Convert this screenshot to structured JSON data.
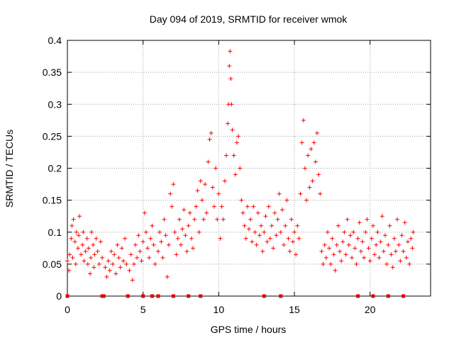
{
  "chart_data": {
    "type": "scatter",
    "title": "Day 094 of 2019, SRMTID for receiver wmok",
    "xlabel": "GPS time / hours",
    "ylabel": "SRMTID / TECUs",
    "xlim": [
      0,
      24
    ],
    "ylim": [
      0,
      0.4
    ],
    "grid": true,
    "marker": "+",
    "color": "#ff0000",
    "x_ticks": [
      {
        "value": 0,
        "label": "0"
      },
      {
        "value": 5,
        "label": "5"
      },
      {
        "value": 10,
        "label": "10"
      },
      {
        "value": 15,
        "label": "15"
      },
      {
        "value": 20,
        "label": "20"
      }
    ],
    "y_ticks": [
      {
        "value": 0,
        "label": "0"
      },
      {
        "value": 0.05,
        "label": "0.05"
      },
      {
        "value": 0.1,
        "label": "0.1"
      },
      {
        "value": 0.15,
        "label": "0.15"
      },
      {
        "value": 0.2,
        "label": "0.2"
      },
      {
        "value": 0.25,
        "label": "0.25"
      },
      {
        "value": 0.3,
        "label": "0.3"
      },
      {
        "value": 0.35,
        "label": "0.35"
      },
      {
        "value": 0.4,
        "label": "0.4"
      }
    ],
    "points": [
      [
        0.0,
        0.055
      ],
      [
        0.1,
        0.04
      ],
      [
        0.15,
        0.065
      ],
      [
        0.25,
        0.09
      ],
      [
        0.3,
        0.11
      ],
      [
        0.35,
        0.06
      ],
      [
        0.4,
        0.12
      ],
      [
        0.5,
        0.085
      ],
      [
        0.55,
        0.05
      ],
      [
        0.6,
        0.1
      ],
      [
        0.7,
        0.075
      ],
      [
        0.75,
        0.095
      ],
      [
        0.8,
        0.125
      ],
      [
        0.9,
        0.065
      ],
      [
        1.0,
        0.08
      ],
      [
        1.05,
        0.1
      ],
      [
        1.1,
        0.055
      ],
      [
        1.2,
        0.07
      ],
      [
        1.3,
        0.09
      ],
      [
        1.35,
        0.05
      ],
      [
        1.4,
        0.075
      ],
      [
        1.5,
        0.035
      ],
      [
        1.55,
        0.06
      ],
      [
        1.6,
        0.1
      ],
      [
        1.7,
        0.08
      ],
      [
        1.75,
        0.045
      ],
      [
        1.8,
        0.065
      ],
      [
        1.9,
        0.09
      ],
      [
        2.0,
        0.07
      ],
      [
        2.1,
        0.05
      ],
      [
        2.2,
        0.085
      ],
      [
        2.3,
        0.06
      ],
      [
        2.5,
        0.045
      ],
      [
        2.6,
        0.03
      ],
      [
        2.7,
        0.055
      ],
      [
        2.8,
        0.04
      ],
      [
        2.9,
        0.07
      ],
      [
        3.0,
        0.05
      ],
      [
        3.1,
        0.065
      ],
      [
        3.2,
        0.035
      ],
      [
        3.3,
        0.08
      ],
      [
        3.4,
        0.06
      ],
      [
        3.5,
        0.045
      ],
      [
        3.6,
        0.075
      ],
      [
        3.7,
        0.055
      ],
      [
        3.8,
        0.09
      ],
      [
        3.9,
        0.05
      ],
      [
        4.1,
        0.04
      ],
      [
        4.2,
        0.065
      ],
      [
        4.3,
        0.025
      ],
      [
        4.4,
        0.05
      ],
      [
        4.5,
        0.08
      ],
      [
        4.6,
        0.06
      ],
      [
        4.7,
        0.095
      ],
      [
        4.8,
        0.07
      ],
      [
        4.9,
        0.055
      ],
      [
        5.0,
        0.085
      ],
      [
        5.1,
        0.13
      ],
      [
        5.2,
        0.1
      ],
      [
        5.3,
        0.075
      ],
      [
        5.4,
        0.06
      ],
      [
        5.5,
        0.09
      ],
      [
        5.6,
        0.11
      ],
      [
        5.7,
        0.08
      ],
      [
        5.8,
        0.05
      ],
      [
        6.0,
        0.07
      ],
      [
        6.1,
        0.1
      ],
      [
        6.2,
        0.085
      ],
      [
        6.3,
        0.06
      ],
      [
        6.4,
        0.12
      ],
      [
        6.5,
        0.095
      ],
      [
        6.6,
        0.03
      ],
      [
        6.7,
        0.08
      ],
      [
        6.8,
        0.16
      ],
      [
        6.9,
        0.14
      ],
      [
        7.0,
        0.175
      ],
      [
        7.1,
        0.1
      ],
      [
        7.2,
        0.065
      ],
      [
        7.3,
        0.09
      ],
      [
        7.4,
        0.12
      ],
      [
        7.5,
        0.08
      ],
      [
        7.6,
        0.105
      ],
      [
        7.7,
        0.135
      ],
      [
        7.8,
        0.095
      ],
      [
        7.9,
        0.07
      ],
      [
        8.0,
        0.11
      ],
      [
        8.1,
        0.13
      ],
      [
        8.2,
        0.09
      ],
      [
        8.3,
        0.075
      ],
      [
        8.4,
        0.12
      ],
      [
        8.5,
        0.14
      ],
      [
        8.6,
        0.165
      ],
      [
        8.7,
        0.1
      ],
      [
        8.8,
        0.18
      ],
      [
        8.9,
        0.15
      ],
      [
        9.0,
        0.12
      ],
      [
        9.1,
        0.175
      ],
      [
        9.2,
        0.13
      ],
      [
        9.3,
        0.21
      ],
      [
        9.4,
        0.245
      ],
      [
        9.5,
        0.255
      ],
      [
        9.6,
        0.17
      ],
      [
        9.7,
        0.14
      ],
      [
        9.8,
        0.2
      ],
      [
        9.9,
        0.12
      ],
      [
        10.0,
        0.16
      ],
      [
        10.1,
        0.09
      ],
      [
        10.2,
        0.14
      ],
      [
        10.3,
        0.12
      ],
      [
        10.4,
        0.18
      ],
      [
        10.5,
        0.22
      ],
      [
        10.6,
        0.27
      ],
      [
        10.65,
        0.3
      ],
      [
        10.7,
        0.36
      ],
      [
        10.75,
        0.383
      ],
      [
        10.8,
        0.34
      ],
      [
        10.85,
        0.3
      ],
      [
        10.9,
        0.26
      ],
      [
        11.0,
        0.22
      ],
      [
        11.1,
        0.19
      ],
      [
        11.2,
        0.24
      ],
      [
        11.3,
        0.25
      ],
      [
        11.4,
        0.2
      ],
      [
        11.5,
        0.15
      ],
      [
        11.6,
        0.13
      ],
      [
        11.7,
        0.11
      ],
      [
        11.8,
        0.09
      ],
      [
        11.9,
        0.14
      ],
      [
        12.0,
        0.105
      ],
      [
        12.1,
        0.12
      ],
      [
        12.2,
        0.085
      ],
      [
        12.3,
        0.14
      ],
      [
        12.4,
        0.1
      ],
      [
        12.5,
        0.08
      ],
      [
        12.6,
        0.13
      ],
      [
        12.7,
        0.095
      ],
      [
        12.8,
        0.11
      ],
      [
        12.9,
        0.07
      ],
      [
        13.0,
        0.1
      ],
      [
        13.1,
        0.125
      ],
      [
        13.2,
        0.085
      ],
      [
        13.3,
        0.14
      ],
      [
        13.4,
        0.09
      ],
      [
        13.5,
        0.11
      ],
      [
        13.6,
        0.075
      ],
      [
        13.7,
        0.13
      ],
      [
        13.8,
        0.095
      ],
      [
        13.9,
        0.12
      ],
      [
        14.0,
        0.16
      ],
      [
        14.1,
        0.1
      ],
      [
        14.2,
        0.135
      ],
      [
        14.3,
        0.08
      ],
      [
        14.4,
        0.11
      ],
      [
        14.5,
        0.15
      ],
      [
        14.6,
        0.09
      ],
      [
        14.7,
        0.07
      ],
      [
        14.8,
        0.12
      ],
      [
        14.9,
        0.085
      ],
      [
        15.0,
        0.1
      ],
      [
        15.1,
        0.065
      ],
      [
        15.2,
        0.11
      ],
      [
        15.3,
        0.09
      ],
      [
        15.4,
        0.16
      ],
      [
        15.5,
        0.24
      ],
      [
        15.6,
        0.275
      ],
      [
        15.7,
        0.2
      ],
      [
        15.8,
        0.15
      ],
      [
        15.9,
        0.22
      ],
      [
        16.0,
        0.17
      ],
      [
        16.1,
        0.23
      ],
      [
        16.2,
        0.18
      ],
      [
        16.3,
        0.24
      ],
      [
        16.4,
        0.21
      ],
      [
        16.5,
        0.255
      ],
      [
        16.6,
        0.19
      ],
      [
        16.7,
        0.16
      ],
      [
        16.8,
        0.07
      ],
      [
        16.9,
        0.05
      ],
      [
        17.0,
        0.08
      ],
      [
        17.1,
        0.06
      ],
      [
        17.2,
        0.1
      ],
      [
        17.3,
        0.075
      ],
      [
        17.4,
        0.05
      ],
      [
        17.5,
        0.09
      ],
      [
        17.6,
        0.065
      ],
      [
        17.7,
        0.04
      ],
      [
        17.8,
        0.08
      ],
      [
        17.9,
        0.11
      ],
      [
        18.0,
        0.07
      ],
      [
        18.1,
        0.055
      ],
      [
        18.2,
        0.085
      ],
      [
        18.3,
        0.1
      ],
      [
        18.4,
        0.065
      ],
      [
        18.5,
        0.12
      ],
      [
        18.6,
        0.08
      ],
      [
        18.7,
        0.095
      ],
      [
        18.8,
        0.06
      ],
      [
        18.9,
        0.1
      ],
      [
        19.0,
        0.075
      ],
      [
        19.1,
        0.05
      ],
      [
        19.2,
        0.09
      ],
      [
        19.3,
        0.115
      ],
      [
        19.4,
        0.07
      ],
      [
        19.5,
        0.085
      ],
      [
        19.6,
        0.06
      ],
      [
        19.7,
        0.1
      ],
      [
        19.8,
        0.12
      ],
      [
        19.9,
        0.075
      ],
      [
        20.0,
        0.055
      ],
      [
        20.1,
        0.09
      ],
      [
        20.2,
        0.11
      ],
      [
        20.3,
        0.065
      ],
      [
        20.4,
        0.08
      ],
      [
        20.5,
        0.1
      ],
      [
        20.6,
        0.06
      ],
      [
        20.7,
        0.085
      ],
      [
        20.8,
        0.125
      ],
      [
        20.9,
        0.07
      ],
      [
        21.0,
        0.095
      ],
      [
        21.1,
        0.05
      ],
      [
        21.2,
        0.08
      ],
      [
        21.3,
        0.11
      ],
      [
        21.4,
        0.065
      ],
      [
        21.5,
        0.045
      ],
      [
        21.6,
        0.09
      ],
      [
        21.7,
        0.07
      ],
      [
        21.8,
        0.12
      ],
      [
        21.9,
        0.08
      ],
      [
        22.0,
        0.055
      ],
      [
        22.1,
        0.095
      ],
      [
        22.2,
        0.07
      ],
      [
        22.3,
        0.115
      ],
      [
        22.4,
        0.06
      ],
      [
        22.5,
        0.085
      ],
      [
        22.6,
        0.05
      ],
      [
        22.7,
        0.09
      ],
      [
        22.8,
        0.075
      ],
      [
        22.85,
        0.1
      ]
    ],
    "gap_markers": [
      0.0,
      2.3,
      2.4,
      4.0,
      5.0,
      5.6,
      6.0,
      7.0,
      8.0,
      8.8,
      13.0,
      14.1,
      19.2,
      20.2,
      21.2,
      22.2
    ]
  }
}
